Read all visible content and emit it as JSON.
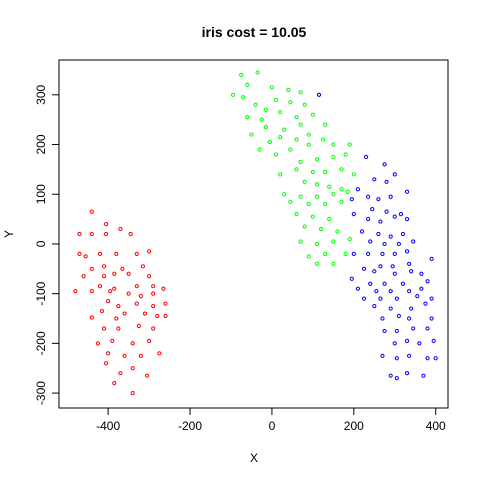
{
  "chart_data": {
    "type": "scatter",
    "title": "iris  cost = 10.05",
    "xlabel": "X",
    "ylabel": "Y",
    "xlim": [
      -520,
      430
    ],
    "ylim": [
      -330,
      370
    ],
    "xticks": [
      -400,
      -200,
      0,
      200,
      400
    ],
    "yticks": [
      -300,
      -200,
      -100,
      0,
      100,
      200,
      300
    ],
    "grid": false,
    "legend": "none",
    "marker": "open-circle",
    "series": [
      {
        "color": "#ff0000",
        "points": [
          [
            -440,
            65
          ],
          [
            -405,
            40
          ],
          [
            -470,
            20
          ],
          [
            -440,
            20
          ],
          [
            -405,
            20
          ],
          [
            -370,
            30
          ],
          [
            -345,
            20
          ],
          [
            -470,
            -20
          ],
          [
            -455,
            -25
          ],
          [
            -420,
            -20
          ],
          [
            -380,
            -20
          ],
          [
            -330,
            -20
          ],
          [
            -300,
            -15
          ],
          [
            -440,
            -50
          ],
          [
            -410,
            -45
          ],
          [
            -365,
            -50
          ],
          [
            -315,
            -45
          ],
          [
            -460,
            -65
          ],
          [
            -410,
            -65
          ],
          [
            -385,
            -60
          ],
          [
            -350,
            -60
          ],
          [
            -300,
            -65
          ],
          [
            -420,
            -85
          ],
          [
            -385,
            -90
          ],
          [
            -330,
            -85
          ],
          [
            -290,
            -85
          ],
          [
            -480,
            -95
          ],
          [
            -440,
            -95
          ],
          [
            -395,
            -95
          ],
          [
            -350,
            -100
          ],
          [
            -320,
            -105
          ],
          [
            -290,
            -100
          ],
          [
            -265,
            -90
          ],
          [
            -400,
            -115
          ],
          [
            -375,
            -125
          ],
          [
            -330,
            -120
          ],
          [
            -290,
            -125
          ],
          [
            -260,
            -120
          ],
          [
            -415,
            -135
          ],
          [
            -360,
            -140
          ],
          [
            -310,
            -140
          ],
          [
            -280,
            -145
          ],
          [
            -440,
            -148
          ],
          [
            -380,
            -150
          ],
          [
            -260,
            -145
          ],
          [
            -410,
            -170
          ],
          [
            -375,
            -170
          ],
          [
            -325,
            -165
          ],
          [
            -290,
            -170
          ],
          [
            -425,
            -200
          ],
          [
            -390,
            -195
          ],
          [
            -340,
            -200
          ],
          [
            -300,
            -195
          ],
          [
            -400,
            -220
          ],
          [
            -360,
            -225
          ],
          [
            -320,
            -225
          ],
          [
            -275,
            -220
          ],
          [
            -405,
            -240
          ],
          [
            -340,
            -250
          ],
          [
            -370,
            -260
          ],
          [
            -305,
            -265
          ],
          [
            -385,
            -280
          ],
          [
            -340,
            -300
          ]
        ]
      },
      {
        "color": "#00ff00",
        "points": [
          [
            -75,
            340
          ],
          [
            -35,
            345
          ],
          [
            -95,
            300
          ],
          [
            -60,
            320
          ],
          [
            0,
            315
          ],
          [
            40,
            310
          ],
          [
            70,
            305
          ],
          [
            -70,
            295
          ],
          [
            -40,
            280
          ],
          [
            -15,
            270
          ],
          [
            10,
            290
          ],
          [
            45,
            285
          ],
          [
            80,
            280
          ],
          [
            -60,
            255
          ],
          [
            -25,
            250
          ],
          [
            20,
            265
          ],
          [
            60,
            255
          ],
          [
            100,
            260
          ],
          [
            -50,
            220
          ],
          [
            -15,
            235
          ],
          [
            30,
            230
          ],
          [
            70,
            240
          ],
          [
            130,
            240
          ],
          [
            -5,
            205
          ],
          [
            20,
            215
          ],
          [
            60,
            210
          ],
          [
            90,
            220
          ],
          [
            125,
            210
          ],
          [
            -30,
            190
          ],
          [
            10,
            180
          ],
          [
            45,
            190
          ],
          [
            90,
            200
          ],
          [
            150,
            200
          ],
          [
            190,
            200
          ],
          [
            70,
            165
          ],
          [
            110,
            170
          ],
          [
            150,
            175
          ],
          [
            180,
            180
          ],
          [
            20,
            140
          ],
          [
            60,
            150
          ],
          [
            100,
            145
          ],
          [
            130,
            145
          ],
          [
            170,
            150
          ],
          [
            200,
            140
          ],
          [
            80,
            125
          ],
          [
            110,
            120
          ],
          [
            140,
            115
          ],
          [
            170,
            110
          ],
          [
            30,
            100
          ],
          [
            70,
            95
          ],
          [
            110,
            95
          ],
          [
            150,
            100
          ],
          [
            185,
            105
          ],
          [
            45,
            85
          ],
          [
            90,
            80
          ],
          [
            130,
            80
          ],
          [
            170,
            85
          ],
          [
            60,
            60
          ],
          [
            100,
            55
          ],
          [
            140,
            50
          ],
          [
            80,
            35
          ],
          [
            120,
            30
          ],
          [
            160,
            25
          ],
          [
            70,
            5
          ],
          [
            110,
            0
          ],
          [
            150,
            5
          ],
          [
            190,
            10
          ],
          [
            90,
            -25
          ],
          [
            130,
            -20
          ],
          [
            180,
            -20
          ],
          [
            110,
            -40
          ],
          [
            150,
            -40
          ],
          [
            115,
            300
          ]
        ]
      },
      {
        "color": "#0000ff",
        "points": [
          [
            115,
            300
          ],
          [
            230,
            175
          ],
          [
            275,
            160
          ],
          [
            300,
            140
          ],
          [
            250,
            130
          ],
          [
            280,
            125
          ],
          [
            330,
            105
          ],
          [
            210,
            110
          ],
          [
            235,
            95
          ],
          [
            260,
            90
          ],
          [
            290,
            95
          ],
          [
            195,
            90
          ],
          [
            245,
            70
          ],
          [
            280,
            65
          ],
          [
            315,
            60
          ],
          [
            200,
            60
          ],
          [
            235,
            50
          ],
          [
            265,
            45
          ],
          [
            300,
            55
          ],
          [
            330,
            50
          ],
          [
            220,
            25
          ],
          [
            260,
            20
          ],
          [
            290,
            15
          ],
          [
            320,
            20
          ],
          [
            240,
            5
          ],
          [
            275,
            0
          ],
          [
            310,
            0
          ],
          [
            345,
            5
          ],
          [
            235,
            -20
          ],
          [
            270,
            -20
          ],
          [
            300,
            -20
          ],
          [
            330,
            -15
          ],
          [
            200,
            -20
          ],
          [
            265,
            -45
          ],
          [
            295,
            -45
          ],
          [
            335,
            -40
          ],
          [
            390,
            -30
          ],
          [
            225,
            -50
          ],
          [
            250,
            -55
          ],
          [
            300,
            -60
          ],
          [
            340,
            -55
          ],
          [
            365,
            -60
          ],
          [
            195,
            -70
          ],
          [
            240,
            -80
          ],
          [
            275,
            -80
          ],
          [
            320,
            -80
          ],
          [
            380,
            -75
          ],
          [
            210,
            -90
          ],
          [
            255,
            -95
          ],
          [
            290,
            -95
          ],
          [
            335,
            -95
          ],
          [
            365,
            -90
          ],
          [
            225,
            -110
          ],
          [
            265,
            -110
          ],
          [
            305,
            -110
          ],
          [
            355,
            -105
          ],
          [
            390,
            -110
          ],
          [
            250,
            -125
          ],
          [
            290,
            -130
          ],
          [
            340,
            -130
          ],
          [
            375,
            -120
          ],
          [
            270,
            -150
          ],
          [
            310,
            -145
          ],
          [
            335,
            -150
          ],
          [
            390,
            -150
          ],
          [
            275,
            -175
          ],
          [
            305,
            -175
          ],
          [
            345,
            -170
          ],
          [
            380,
            -170
          ],
          [
            300,
            -200
          ],
          [
            330,
            -195
          ],
          [
            360,
            -200
          ],
          [
            395,
            -195
          ],
          [
            270,
            -225
          ],
          [
            305,
            -230
          ],
          [
            335,
            -225
          ],
          [
            380,
            -230
          ],
          [
            400,
            -230
          ],
          [
            290,
            -265
          ],
          [
            330,
            -260
          ],
          [
            370,
            -265
          ],
          [
            305,
            -270
          ]
        ]
      }
    ]
  }
}
